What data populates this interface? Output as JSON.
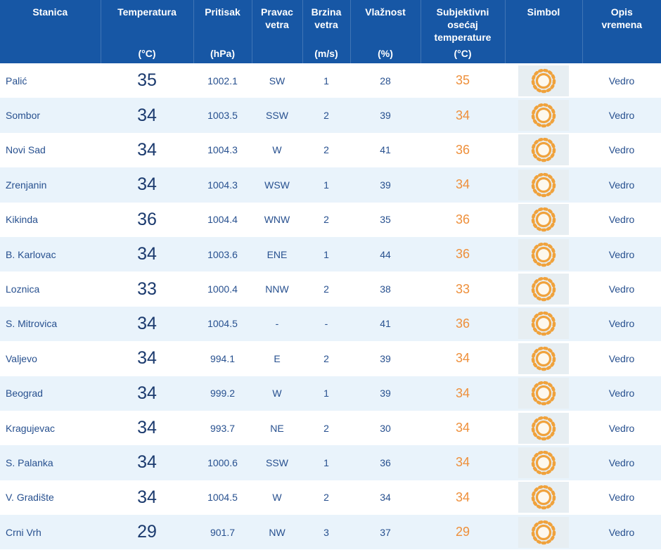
{
  "chart_data": {
    "type": "table",
    "columns": [
      {
        "label": "Stanica",
        "unit": ""
      },
      {
        "label": "Temperatura",
        "unit": "(°C)"
      },
      {
        "label": "Pritisak",
        "unit": "(hPa)"
      },
      {
        "label": "Pravac vetra",
        "unit": ""
      },
      {
        "label": "Brzina vetra",
        "unit": "(m/s)"
      },
      {
        "label": "Vlažnost",
        "unit": "(%)"
      },
      {
        "label": "Subjektivni osećaj temperature",
        "unit": "(°C)"
      },
      {
        "label": "Simbol",
        "unit": ""
      },
      {
        "label": "Opis vremena",
        "unit": ""
      }
    ],
    "rows": [
      {
        "station": "Palić",
        "temperature": "35",
        "pressure": "1002.1",
        "wind_direction": "SW",
        "wind_speed": "1",
        "humidity": "28",
        "feels_like": "35",
        "symbol": "sun-icon",
        "description": "Vedro"
      },
      {
        "station": "Sombor",
        "temperature": "34",
        "pressure": "1003.5",
        "wind_direction": "SSW",
        "wind_speed": "2",
        "humidity": "39",
        "feels_like": "34",
        "symbol": "sun-icon",
        "description": "Vedro"
      },
      {
        "station": "Novi Sad",
        "temperature": "34",
        "pressure": "1004.3",
        "wind_direction": "W",
        "wind_speed": "2",
        "humidity": "41",
        "feels_like": "36",
        "symbol": "sun-icon",
        "description": "Vedro"
      },
      {
        "station": "Zrenjanin",
        "temperature": "34",
        "pressure": "1004.3",
        "wind_direction": "WSW",
        "wind_speed": "1",
        "humidity": "39",
        "feels_like": "34",
        "symbol": "sun-icon",
        "description": "Vedro"
      },
      {
        "station": "Kikinda",
        "temperature": "36",
        "pressure": "1004.4",
        "wind_direction": "WNW",
        "wind_speed": "2",
        "humidity": "35",
        "feels_like": "36",
        "symbol": "sun-icon",
        "description": "Vedro"
      },
      {
        "station": "B. Karlovac",
        "temperature": "34",
        "pressure": "1003.6",
        "wind_direction": "ENE",
        "wind_speed": "1",
        "humidity": "44",
        "feels_like": "36",
        "symbol": "sun-icon",
        "description": "Vedro"
      },
      {
        "station": "Loznica",
        "temperature": "33",
        "pressure": "1000.4",
        "wind_direction": "NNW",
        "wind_speed": "2",
        "humidity": "38",
        "feels_like": "33",
        "symbol": "sun-icon",
        "description": "Vedro"
      },
      {
        "station": "S. Mitrovica",
        "temperature": "34",
        "pressure": "1004.5",
        "wind_direction": "-",
        "wind_speed": "-",
        "humidity": "41",
        "feels_like": "36",
        "symbol": "sun-icon",
        "description": "Vedro"
      },
      {
        "station": "Valjevo",
        "temperature": "34",
        "pressure": "994.1",
        "wind_direction": "E",
        "wind_speed": "2",
        "humidity": "39",
        "feels_like": "34",
        "symbol": "sun-icon",
        "description": "Vedro"
      },
      {
        "station": "Beograd",
        "temperature": "34",
        "pressure": "999.2",
        "wind_direction": "W",
        "wind_speed": "1",
        "humidity": "39",
        "feels_like": "34",
        "symbol": "sun-icon",
        "description": "Vedro"
      },
      {
        "station": "Kragujevac",
        "temperature": "34",
        "pressure": "993.7",
        "wind_direction": "NE",
        "wind_speed": "2",
        "humidity": "30",
        "feels_like": "34",
        "symbol": "sun-icon",
        "description": "Vedro"
      },
      {
        "station": "S. Palanka",
        "temperature": "34",
        "pressure": "1000.6",
        "wind_direction": "SSW",
        "wind_speed": "1",
        "humidity": "36",
        "feels_like": "34",
        "symbol": "sun-icon",
        "description": "Vedro"
      },
      {
        "station": "V. Gradište",
        "temperature": "34",
        "pressure": "1004.5",
        "wind_direction": "W",
        "wind_speed": "2",
        "humidity": "34",
        "feels_like": "34",
        "symbol": "sun-icon",
        "description": "Vedro"
      },
      {
        "station": "Crni Vrh",
        "temperature": "29",
        "pressure": "901.7",
        "wind_direction": "NW",
        "wind_speed": "3",
        "humidity": "37",
        "feels_like": "29",
        "symbol": "sun-icon",
        "description": "Vedro"
      }
    ]
  },
  "colors": {
    "header_bg": "#1757a5",
    "row_alt_bg": "#e9f3fb",
    "text_blue": "#27508f",
    "temp_blue": "#1b3a6e",
    "feels_like_orange": "#ee8f3a",
    "symbol_bg": "#e7eef2",
    "sun_orange": "#f0a23c"
  }
}
